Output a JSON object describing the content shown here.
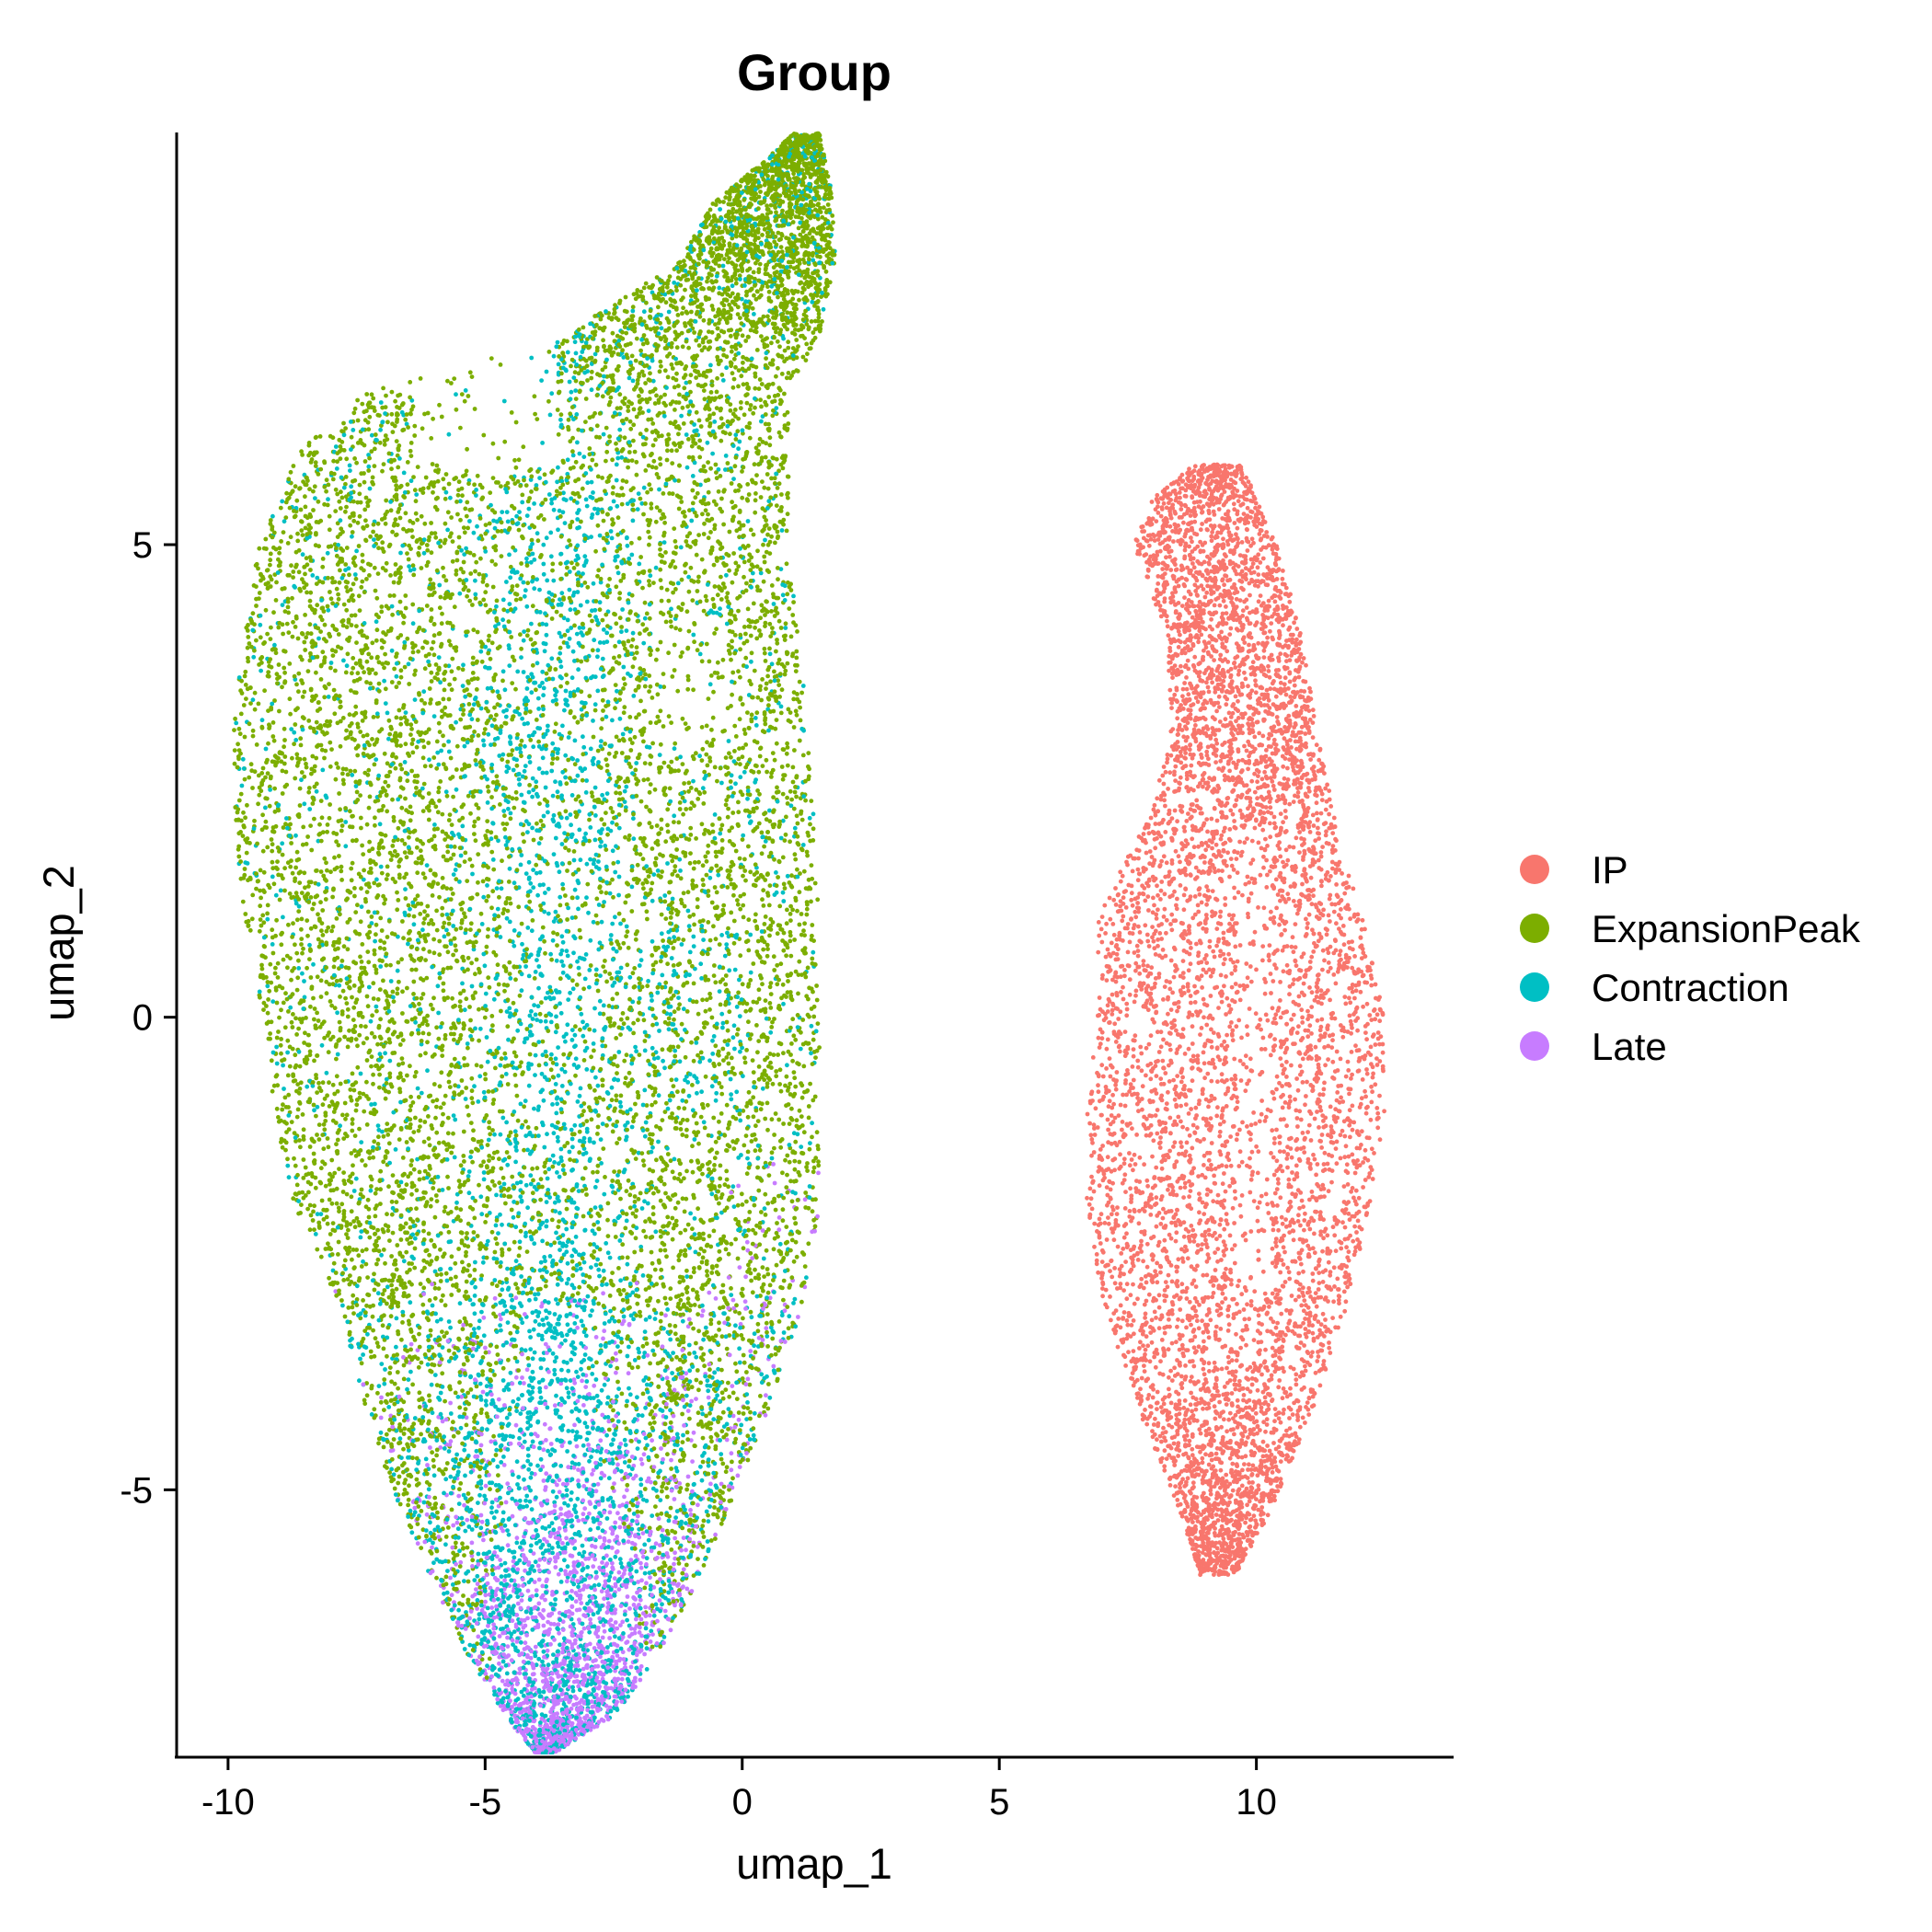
{
  "chart_data": {
    "type": "scatter",
    "title": "Group",
    "xlabel": "umap_1",
    "ylabel": "umap_2",
    "xlim": [
      -11,
      13.8
    ],
    "ylim": [
      -7.8,
      9.4
    ],
    "xticks": [
      -10,
      -5,
      0,
      5,
      10
    ],
    "yticks": [
      -5,
      0,
      5
    ],
    "grid": false,
    "legend_position": "right",
    "series": [
      {
        "name": "IP",
        "color": "#F8766D"
      },
      {
        "name": "ExpansionPeak",
        "color": "#7CAE00"
      },
      {
        "name": "Contraction",
        "color": "#00BFC4"
      },
      {
        "name": "Late",
        "color": "#C77CFF"
      }
    ]
  }
}
